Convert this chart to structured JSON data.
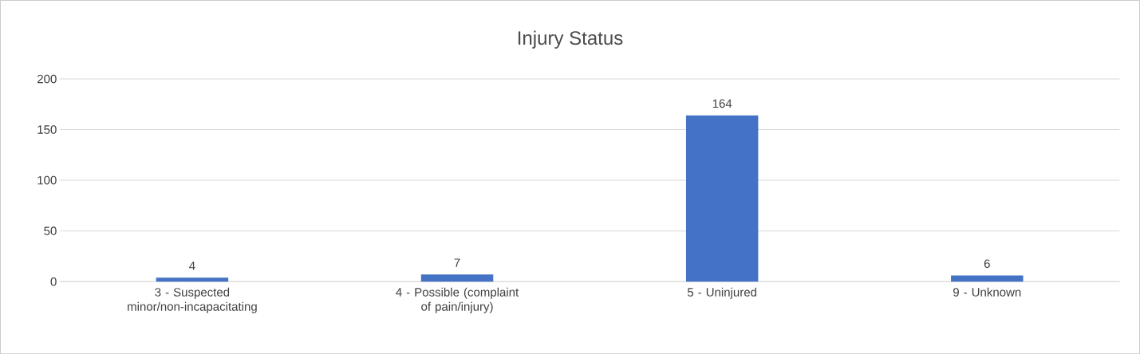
{
  "chart_data": {
    "type": "bar",
    "title": "Injury Status",
    "categories": [
      "3 - Suspected minor/non-incapacitating",
      "4 - Possible (complaint of pain/injury)",
      "5 - Uninjured",
      "9 - Unknown"
    ],
    "values": [
      4,
      7,
      164,
      6
    ],
    "color": "#4472c4",
    "ylim": [
      0,
      200
    ],
    "yticks": [
      0,
      50,
      100,
      150,
      200
    ],
    "grid": "y",
    "data_labels": true
  }
}
